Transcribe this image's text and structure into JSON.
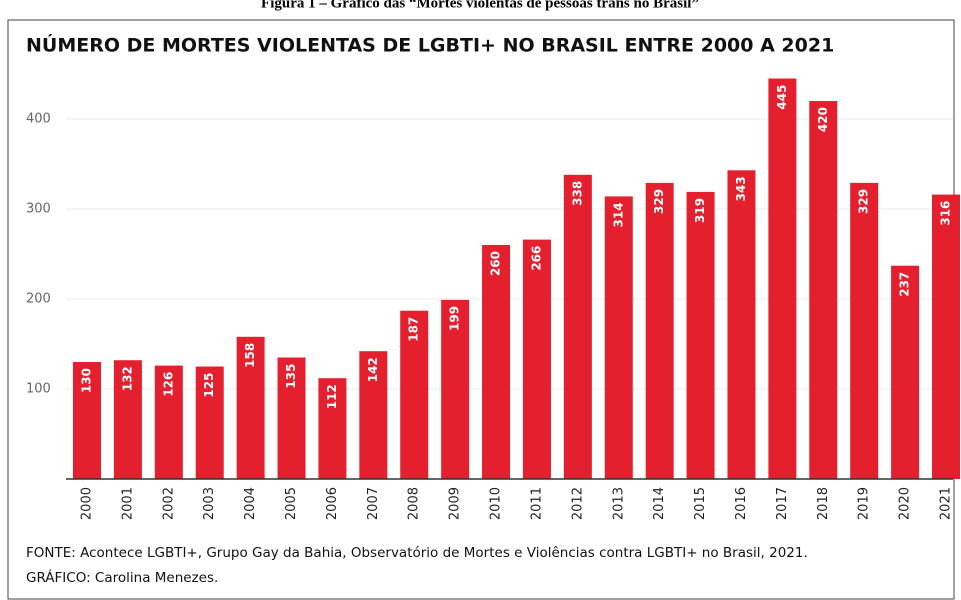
{
  "caption": "Figura 1 – Gráfico das “Mortes violentas de pessoas trans no Brasil”",
  "chart_data": {
    "type": "bar",
    "title": "NÚMERO DE MORTES VIOLENTAS DE LGBTI+ NO BRASIL ENTRE 2000 A 2021",
    "categories": [
      "2000",
      "2001",
      "2002",
      "2003",
      "2004",
      "2005",
      "2006",
      "2007",
      "2008",
      "2009",
      "2010",
      "2011",
      "2012",
      "2013",
      "2014",
      "2015",
      "2016",
      "2017",
      "2018",
      "2019",
      "2020",
      "2021"
    ],
    "values": [
      130,
      132,
      126,
      125,
      158,
      135,
      112,
      142,
      187,
      199,
      260,
      266,
      338,
      314,
      329,
      319,
      343,
      445,
      420,
      329,
      237,
      316
    ],
    "color": "#e5202e",
    "ylim": [
      0,
      450
    ],
    "yticks": [
      100,
      200,
      300,
      400
    ],
    "grid": true,
    "source": "FONTE: Acontece LGBTI+, Grupo Gay da Bahia, Observatório de Mortes e Violências contra LGBTI+ no Brasil, 2021.",
    "credit": "GRÁFICO: Carolina Menezes."
  }
}
